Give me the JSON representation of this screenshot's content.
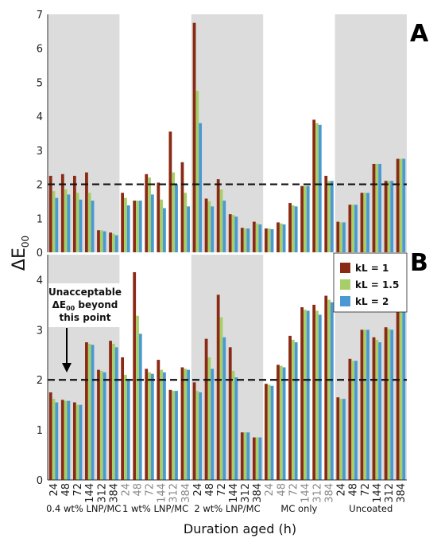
{
  "chart_data": [
    {
      "panel": "A",
      "type": "bar",
      "ylim": [
        0,
        7
      ],
      "yticks": [
        0,
        1,
        2,
        3,
        4,
        5,
        6,
        7
      ],
      "threshold": 2,
      "groups": [
        "0.4 wt% LNP/MC",
        "1 wt% LNP/MC",
        "2 wt% LNP/MC",
        "MC only",
        "Uncoated"
      ],
      "x_ticks": [
        "24",
        "48",
        "72",
        "144",
        "312",
        "384"
      ],
      "series": [
        {
          "name": "kL = 1",
          "values": [
            2.25,
            2.3,
            2.25,
            2.35,
            0.65,
            0.58,
            1.75,
            1.52,
            2.3,
            2.05,
            3.55,
            2.65,
            6.75,
            1.58,
            2.15,
            1.12,
            0.72,
            0.9,
            0.7,
            0.88,
            1.45,
            1.95,
            3.9,
            2.25,
            0.9,
            1.4,
            1.75,
            2.6,
            2.1,
            2.75
          ]
        },
        {
          "name": "kL = 1.5",
          "values": [
            1.8,
            1.85,
            1.75,
            1.75,
            0.65,
            0.55,
            1.6,
            1.52,
            2.2,
            1.55,
            2.35,
            1.75,
            4.75,
            1.5,
            1.85,
            1.1,
            0.7,
            0.85,
            0.7,
            0.85,
            1.38,
            1.95,
            3.8,
            2.1,
            0.88,
            1.4,
            1.75,
            2.6,
            2.1,
            2.75
          ]
        },
        {
          "name": "kL = 2",
          "values": [
            1.6,
            1.7,
            1.55,
            1.52,
            0.62,
            0.5,
            1.38,
            1.52,
            1.7,
            1.3,
            2.0,
            1.35,
            3.8,
            1.35,
            1.52,
            1.05,
            0.7,
            0.82,
            0.68,
            0.82,
            1.35,
            1.95,
            3.75,
            2.1,
            0.88,
            1.4,
            1.75,
            2.6,
            2.1,
            2.75
          ]
        }
      ]
    },
    {
      "panel": "B",
      "type": "bar",
      "ylim": [
        0,
        4.5
      ],
      "yticks": [
        0,
        1,
        2,
        3,
        4
      ],
      "threshold": 2,
      "groups": [
        "0.4 wt% LNP/MC",
        "1 wt% LNP/MC",
        "2 wt% LNP/MC",
        "MC only",
        "Uncoated"
      ],
      "x_ticks": [
        "24",
        "48",
        "72",
        "144",
        "312",
        "384"
      ],
      "series": [
        {
          "name": "kL = 1",
          "values": [
            1.75,
            1.6,
            1.55,
            2.75,
            2.2,
            2.78,
            2.45,
            4.15,
            2.22,
            2.4,
            1.8,
            2.25,
            1.95,
            2.82,
            3.7,
            2.65,
            0.95,
            0.85,
            1.92,
            2.3,
            2.88,
            3.45,
            3.5,
            3.68,
            1.65,
            2.42,
            3.0,
            2.85,
            3.05,
            4.12
          ]
        },
        {
          "name": "kL = 1.5",
          "values": [
            1.62,
            1.58,
            1.5,
            2.72,
            2.18,
            2.72,
            2.1,
            3.28,
            2.15,
            2.2,
            1.78,
            2.22,
            1.78,
            2.45,
            3.25,
            2.18,
            0.95,
            0.85,
            1.9,
            2.28,
            2.8,
            3.4,
            3.38,
            3.6,
            1.62,
            2.38,
            3.0,
            2.8,
            3.02,
            4.0
          ]
        },
        {
          "name": "kL = 2",
          "values": [
            1.55,
            1.58,
            1.5,
            2.7,
            2.15,
            2.65,
            2.02,
            2.92,
            2.12,
            2.15,
            1.78,
            2.2,
            1.75,
            2.22,
            2.85,
            2.05,
            0.95,
            0.85,
            1.88,
            2.25,
            2.75,
            3.38,
            3.3,
            3.55,
            1.62,
            2.38,
            3.0,
            2.75,
            3.0,
            3.95
          ]
        }
      ]
    }
  ],
  "colors": {
    "series": [
      "#8b2a14",
      "#a6cf6a",
      "#4a98d4"
    ],
    "band": "#dcdcdc",
    "tick_grey": "#8a8a8a",
    "tick_dark": "#222222"
  },
  "panel_labels": [
    "A",
    "B"
  ],
  "y_axis_label": {
    "main": "ΔE",
    "sub": "00"
  },
  "x_axis_label": "Duration aged (h)",
  "annotation": {
    "line1": "Unacceptable",
    "line2_main": "ΔE",
    "line2_sub": "00",
    "line2_rest": " beyond",
    "line3": "this point"
  }
}
